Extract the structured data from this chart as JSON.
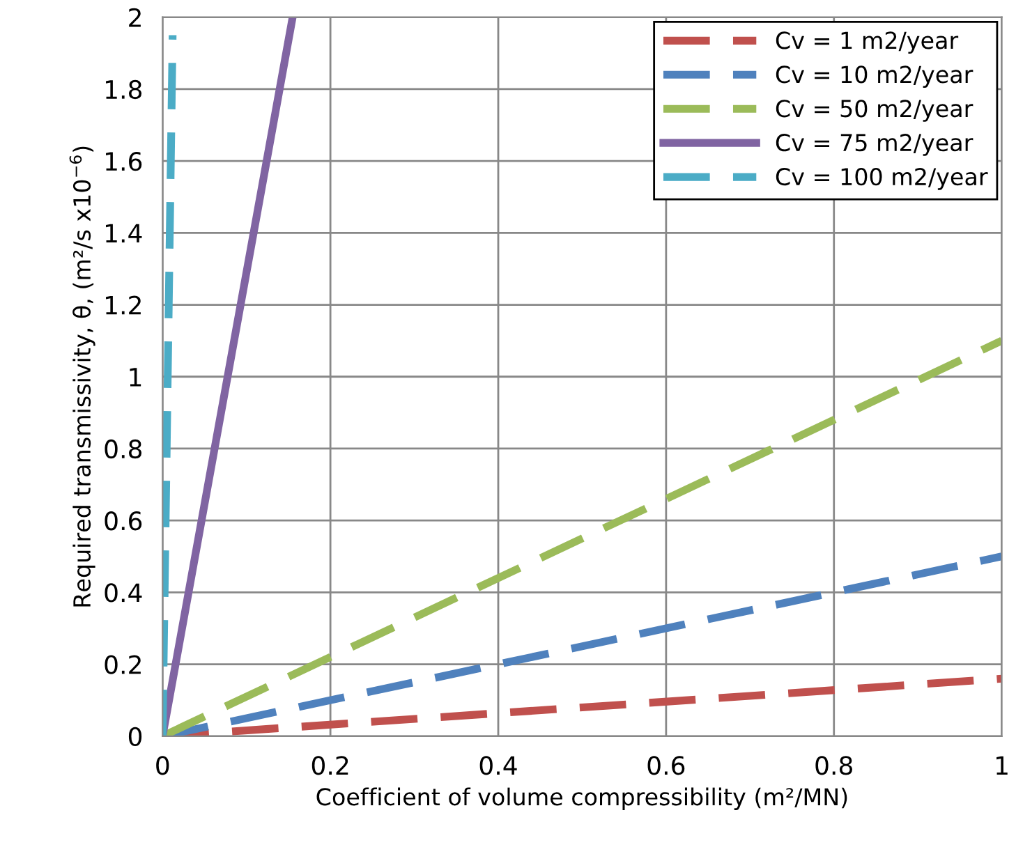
{
  "chart_data": {
    "type": "line",
    "xlabel": "Coefficient of volume compressibility (m²/MN)",
    "ylabel": "Required transmissivity, θ, (m²/s x10$^{−6}$)",
    "xlim": [
      0,
      1
    ],
    "xticks": [
      0,
      0.2,
      0.4,
      0.6,
      0.8,
      1
    ],
    "ylim": [
      0,
      2
    ],
    "yticks": [
      0,
      0.2,
      0.4,
      0.6,
      0.8,
      1,
      1.2,
      1.4,
      1.6,
      1.8,
      2
    ],
    "grid": true,
    "legend": "top right",
    "marker": "none",
    "series": [
      {
        "name": "Cv = 1 m2/year",
        "color": "#c0504d",
        "line_style": "dashed",
        "x": [
          0,
          1
        ],
        "values": [
          0,
          0.16
        ]
      },
      {
        "name": "Cv = 10 m2/year",
        "color": "#4f81bd",
        "line_style": "dashed",
        "x": [
          0,
          1
        ],
        "values": [
          0,
          0.5
        ]
      },
      {
        "name": "Cv = 50 m2/year",
        "color": "#9bbb59",
        "line_style": "dashed",
        "x": [
          0,
          1
        ],
        "values": [
          0,
          1.1
        ]
      },
      {
        "name": "Cv = 75 m2/year",
        "color": "#8064a2",
        "line_style": "solid",
        "x": [
          0,
          0.155
        ],
        "values": [
          0,
          2
        ]
      },
      {
        "name": "Cv = 100 m2/year",
        "color": "#4bacc6",
        "line_style": "dashed",
        "x": [
          0,
          0.012
        ],
        "values": [
          0,
          1.95
        ]
      }
    ]
  }
}
